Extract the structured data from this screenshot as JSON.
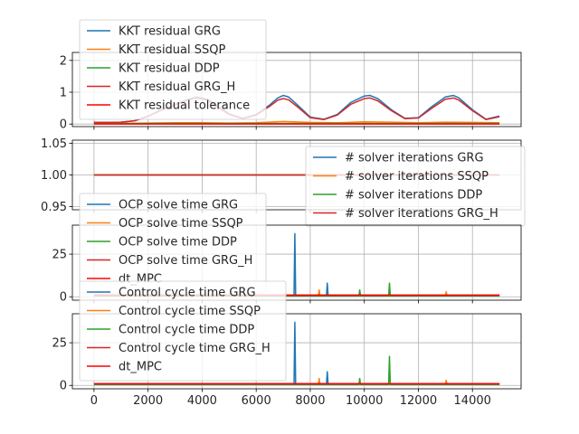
{
  "chart_data": [
    {
      "type": "line",
      "xlim": [
        -800,
        15800
      ],
      "ylim": [
        -0.08,
        2.25
      ],
      "xticks": [
        0,
        2000,
        4000,
        6000,
        8000,
        10000,
        12000,
        14000
      ],
      "yticks": [
        0,
        1,
        2
      ],
      "ytick_labels": [
        "0",
        "1",
        "2"
      ],
      "show_xtick_labels": false,
      "grid": true,
      "legend_position": "upper-left",
      "series": [
        {
          "name": "KKT residual GRG",
          "color": "#1f77b4",
          "x": [
            0,
            500,
            1000,
            1500,
            2000,
            2500,
            3000,
            3500,
            3800,
            4200,
            4600,
            5000,
            5500,
            6000,
            6500,
            6800,
            7000,
            7200,
            7500,
            8000,
            8500,
            9000,
            9500,
            10000,
            10200,
            10500,
            11000,
            11500,
            12000,
            12500,
            13000,
            13300,
            13500,
            14000,
            14500,
            15000
          ],
          "y": [
            0.05,
            0.05,
            0.06,
            0.1,
            0.25,
            0.45,
            0.62,
            0.78,
            0.85,
            0.78,
            0.55,
            0.32,
            0.18,
            0.3,
            0.6,
            0.82,
            0.9,
            0.85,
            0.62,
            0.22,
            0.15,
            0.3,
            0.68,
            0.88,
            0.9,
            0.8,
            0.45,
            0.18,
            0.2,
            0.55,
            0.85,
            0.9,
            0.82,
            0.45,
            0.15,
            0.25
          ]
        },
        {
          "name": "KKT residual SSQP",
          "color": "#ff7f0e",
          "x": [
            0,
            1000,
            2000,
            3000,
            4000,
            5000,
            6000,
            7000,
            8000,
            9000,
            10000,
            11000,
            12000,
            13000,
            14000,
            15000
          ],
          "y": [
            0.02,
            0.02,
            0.03,
            0.04,
            0.04,
            0.03,
            0.04,
            0.08,
            0.05,
            0.04,
            0.07,
            0.06,
            0.04,
            0.06,
            0.05,
            0.04
          ]
        },
        {
          "name": "KKT residual DDP",
          "color": "#2ca02c",
          "x": [
            0,
            15000
          ],
          "y": [
            0.02,
            0.02
          ]
        },
        {
          "name": "KKT residual GRG_H",
          "color": "#d62728",
          "x": [
            0,
            500,
            1000,
            1500,
            2000,
            2500,
            3000,
            3500,
            3800,
            4200,
            4600,
            5000,
            5500,
            6000,
            6500,
            6800,
            7000,
            7200,
            7500,
            8000,
            8500,
            9000,
            9500,
            10000,
            10200,
            10500,
            11000,
            11500,
            12000,
            12500,
            13000,
            13300,
            13500,
            14000,
            14500,
            15000
          ],
          "y": [
            0.05,
            0.05,
            0.06,
            0.1,
            0.24,
            0.44,
            0.6,
            0.76,
            0.82,
            0.75,
            0.52,
            0.3,
            0.17,
            0.28,
            0.56,
            0.75,
            0.8,
            0.76,
            0.56,
            0.2,
            0.14,
            0.28,
            0.62,
            0.8,
            0.82,
            0.73,
            0.42,
            0.17,
            0.19,
            0.5,
            0.78,
            0.82,
            0.75,
            0.42,
            0.14,
            0.23
          ]
        },
        {
          "name": "KKT residual tolerance",
          "color": "#ff0000",
          "x": [
            0,
            15000
          ],
          "y": [
            0.0,
            0.0
          ]
        }
      ]
    },
    {
      "type": "line",
      "xlim": [
        -800,
        15800
      ],
      "ylim": [
        0.945,
        1.055
      ],
      "xticks": [
        0,
        2000,
        4000,
        6000,
        8000,
        10000,
        12000,
        14000
      ],
      "yticks": [
        0.95,
        1.0,
        1.05
      ],
      "ytick_labels": [
        "0.95",
        "1.00",
        "1.05"
      ],
      "show_xtick_labels": false,
      "grid": true,
      "legend_position": "lower-right",
      "series": [
        {
          "name": "# solver iterations GRG",
          "color": "#1f77b4",
          "x": [
            0,
            15000
          ],
          "y": [
            1,
            1
          ]
        },
        {
          "name": "# solver iterations SSQP",
          "color": "#ff7f0e",
          "x": [
            0,
            15000
          ],
          "y": [
            1,
            1
          ]
        },
        {
          "name": "# solver iterations DDP",
          "color": "#2ca02c",
          "x": [
            0,
            15000
          ],
          "y": [
            1,
            1
          ]
        },
        {
          "name": "# solver iterations GRG_H",
          "color": "#d62728",
          "x": [
            0,
            15000
          ],
          "y": [
            1,
            1
          ]
        }
      ]
    },
    {
      "type": "line",
      "xlim": [
        -800,
        15800
      ],
      "ylim": [
        -2,
        42
      ],
      "xticks": [
        0,
        2000,
        4000,
        6000,
        8000,
        10000,
        12000,
        14000
      ],
      "yticks": [
        0,
        25
      ],
      "ytick_labels": [
        "0",
        "25"
      ],
      "show_xtick_labels": false,
      "grid": true,
      "legend_position": "upper-left",
      "series": [
        {
          "name": "OCP solve time GRG",
          "color": "#1f77b4",
          "x": [
            0,
            7400,
            7430,
            7460,
            8600,
            8630,
            8660,
            15000
          ],
          "y": [
            0.8,
            0.8,
            37,
            0.8,
            0.8,
            8,
            0.8,
            0.8
          ]
        },
        {
          "name": "OCP solve time SSQP",
          "color": "#ff7f0e",
          "x": [
            0,
            8300,
            8330,
            8360,
            13000,
            13030,
            13060,
            15000
          ],
          "y": [
            0.6,
            0.6,
            4,
            0.6,
            0.6,
            3,
            0.6,
            0.6
          ]
        },
        {
          "name": "OCP solve time DDP",
          "color": "#2ca02c",
          "x": [
            0,
            9800,
            9830,
            9860,
            10900,
            10930,
            10960,
            15000
          ],
          "y": [
            0.5,
            0.5,
            4,
            0.5,
            0.5,
            8,
            0.5,
            0.5
          ]
        },
        {
          "name": "OCP solve time GRG_H",
          "color": "#d62728",
          "x": [
            0,
            15000
          ],
          "y": [
            0.9,
            0.9
          ]
        },
        {
          "name": "dt_MPC",
          "color": "#ff0000",
          "x": [
            0,
            15000
          ],
          "y": [
            1,
            1
          ]
        }
      ]
    },
    {
      "type": "line",
      "xlim": [
        -800,
        15800
      ],
      "ylim": [
        -2,
        42
      ],
      "xticks": [
        0,
        2000,
        4000,
        6000,
        8000,
        10000,
        12000,
        14000
      ],
      "yticks": [
        0,
        25
      ],
      "ytick_labels": [
        "0",
        "25"
      ],
      "xtick_labels": [
        "0",
        "2000",
        "4000",
        "6000",
        "8000",
        "10000",
        "12000",
        "14000"
      ],
      "show_xtick_labels": true,
      "grid": true,
      "legend_position": "upper-left",
      "series": [
        {
          "name": "Control cycle time GRG",
          "color": "#1f77b4",
          "x": [
            0,
            7400,
            7430,
            7460,
            8600,
            8630,
            8660,
            15000
          ],
          "y": [
            0.8,
            0.8,
            37,
            0.8,
            0.8,
            8,
            0.8,
            0.8
          ]
        },
        {
          "name": "Control cycle time SSQP",
          "color": "#ff7f0e",
          "x": [
            0,
            8300,
            8330,
            8360,
            13000,
            13030,
            13060,
            15000
          ],
          "y": [
            0.6,
            0.6,
            4,
            0.6,
            0.6,
            3,
            0.6,
            0.6
          ]
        },
        {
          "name": "Control cycle time DDP",
          "color": "#2ca02c",
          "x": [
            0,
            9800,
            9830,
            9860,
            10900,
            10930,
            10960,
            15000
          ],
          "y": [
            0.5,
            0.5,
            4,
            0.5,
            0.5,
            17,
            0.5,
            0.5
          ]
        },
        {
          "name": "Control cycle time GRG_H",
          "color": "#d62728",
          "x": [
            0,
            15000
          ],
          "y": [
            0.9,
            0.9
          ]
        },
        {
          "name": "dt_MPC",
          "color": "#ff0000",
          "x": [
            0,
            15000
          ],
          "y": [
            1,
            1
          ]
        }
      ]
    }
  ]
}
